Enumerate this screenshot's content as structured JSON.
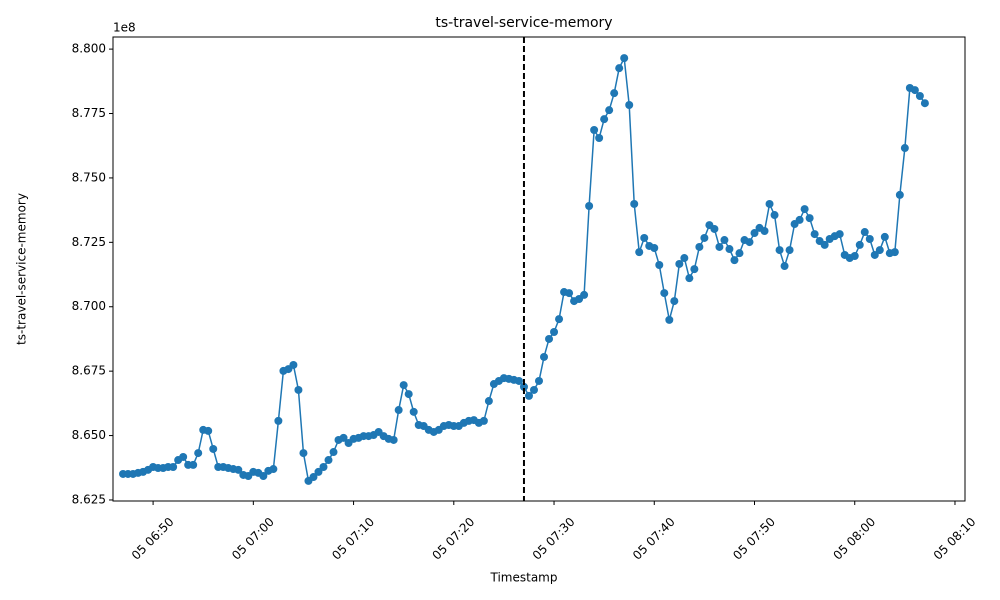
{
  "chart_data": {
    "type": "line",
    "title": "ts-travel-service-memory",
    "x_label": "Timestamp",
    "y_label": "ts-travel-service-memory",
    "y_offset_label": "1e8",
    "color": "#1f77b4",
    "markers": true,
    "vline_x": 447,
    "xlim": [
      406,
      491
    ],
    "ylim": [
      8.6246,
      8.8047
    ],
    "xticks": [
      {
        "value": 410,
        "label": "05 06:50"
      },
      {
        "value": 420,
        "label": "05 07:00"
      },
      {
        "value": 430,
        "label": "05 07:10"
      },
      {
        "value": 440,
        "label": "05 07:20"
      },
      {
        "value": 450,
        "label": "05 07:30"
      },
      {
        "value": 460,
        "label": "05 07:40"
      },
      {
        "value": 470,
        "label": "05 07:50"
      },
      {
        "value": 480,
        "label": "05 08:00"
      },
      {
        "value": 490,
        "label": "05 08:10"
      }
    ],
    "yticks": [
      {
        "value": 8.625,
        "label": "8.625"
      },
      {
        "value": 8.65,
        "label": "8.650"
      },
      {
        "value": 8.675,
        "label": "8.675"
      },
      {
        "value": 8.7,
        "label": "8.700"
      },
      {
        "value": 8.725,
        "label": "8.725"
      },
      {
        "value": 8.75,
        "label": "8.750"
      },
      {
        "value": 8.775,
        "label": "8.775"
      },
      {
        "value": 8.8,
        "label": "8.800"
      }
    ],
    "x": [
      407,
      407.5,
      408,
      408.5,
      409,
      409.5,
      410,
      410.5,
      411,
      411.5,
      412,
      412.5,
      413,
      413.5,
      414,
      414.5,
      415,
      415.5,
      416,
      416.5,
      417,
      417.5,
      418,
      418.5,
      419,
      419.5,
      420,
      420.5,
      421,
      421.5,
      422,
      422.5,
      423,
      423.5,
      424,
      424.5,
      425,
      425.5,
      426,
      426.5,
      427,
      427.5,
      428,
      428.5,
      429,
      429.5,
      430,
      430.5,
      431,
      431.5,
      432,
      432.5,
      433,
      433.5,
      434,
      434.5,
      435,
      435.5,
      436,
      436.5,
      437,
      437.5,
      438,
      438.5,
      439,
      439.5,
      440,
      440.5,
      441,
      441.5,
      442,
      442.5,
      443,
      443.5,
      444,
      444.5,
      445,
      445.5,
      446,
      446.5,
      447,
      447.5,
      448,
      448.5,
      449,
      449.5,
      450,
      450.5,
      451,
      451.5,
      452,
      452.5,
      453,
      453.5,
      454,
      454.5,
      455,
      455.5,
      456,
      456.5,
      457,
      457.5,
      458,
      458.5,
      459,
      459.5,
      460,
      460.5,
      461,
      461.5,
      462,
      462.5,
      463,
      463.5,
      464,
      464.5,
      465,
      465.5,
      466,
      466.5,
      467,
      467.5,
      468,
      468.5,
      469,
      469.5,
      470,
      470.5,
      471,
      471.5,
      472,
      472.5,
      473,
      473.5,
      474,
      474.5,
      475,
      475.5,
      476,
      476.5,
      477,
      477.5,
      478,
      478.5,
      479,
      479.5,
      480,
      480.5,
      481,
      481.5,
      482,
      482.5,
      483,
      483.5,
      484,
      484.5,
      485,
      485.5,
      486,
      486.5,
      487
    ],
    "values": [
      8.6351,
      8.6351,
      8.6351,
      8.6355,
      8.6359,
      8.6367,
      8.6378,
      8.6374,
      8.6374,
      8.6378,
      8.6378,
      8.6405,
      8.6417,
      8.6386,
      8.6386,
      8.6432,
      8.6522,
      8.6518,
      8.6448,
      8.6378,
      8.6378,
      8.6374,
      8.637,
      8.6367,
      8.6347,
      8.6343,
      8.6359,
      8.6355,
      8.6343,
      8.6363,
      8.637,
      8.6557,
      8.6751,
      8.6758,
      8.6774,
      8.6677,
      8.6432,
      8.6324,
      8.6339,
      8.6359,
      8.6378,
      8.6405,
      8.6436,
      8.6483,
      8.6491,
      8.6471,
      8.6487,
      8.6491,
      8.6498,
      8.6498,
      8.6502,
      8.6514,
      8.6498,
      8.6487,
      8.6483,
      8.6599,
      8.6696,
      8.6661,
      8.6592,
      8.6541,
      8.6537,
      8.6522,
      8.6514,
      8.6522,
      8.6537,
      8.6541,
      8.6537,
      8.6537,
      8.6549,
      8.6557,
      8.656,
      8.6549,
      8.6557,
      8.6634,
      8.67,
      8.6712,
      8.6723,
      8.672,
      8.6716,
      8.6712,
      8.6689,
      8.6654,
      8.6677,
      8.6712,
      8.6805,
      8.6875,
      8.6902,
      8.6952,
      8.7057,
      8.7053,
      8.7022,
      8.703,
      8.7046,
      8.7391,
      8.7686,
      8.7655,
      8.7728,
      8.7763,
      8.7829,
      8.7926,
      8.7965,
      8.7783,
      8.7399,
      8.7212,
      8.7267,
      8.7236,
      8.7228,
      8.7162,
      8.7053,
      8.6949,
      8.7022,
      8.7166,
      8.7189,
      8.7111,
      8.7146,
      8.7232,
      8.7267,
      8.7317,
      8.7302,
      8.7232,
      8.7259,
      8.7224,
      8.7181,
      8.7208,
      8.7259,
      8.7251,
      8.7286,
      8.7306,
      8.7294,
      8.7399,
      8.7356,
      8.722,
      8.7158,
      8.722,
      8.7321,
      8.7337,
      8.7379,
      8.7344,
      8.7282,
      8.7255,
      8.724,
      8.7263,
      8.7274,
      8.7282,
      8.7201,
      8.7189,
      8.7197,
      8.724,
      8.729,
      8.7263,
      8.7201,
      8.722,
      8.7271,
      8.7208,
      8.7212,
      8.7434,
      8.7616,
      8.7849,
      8.7841,
      8.7818,
      8.779
    ]
  }
}
